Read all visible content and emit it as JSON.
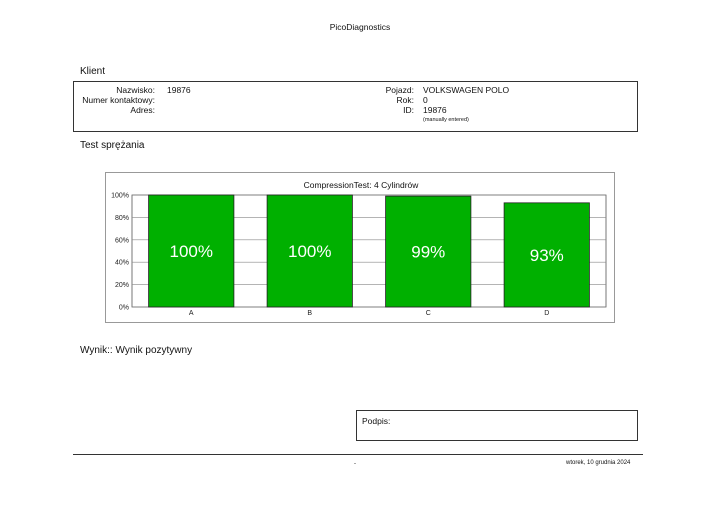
{
  "header": {
    "title": "PicoDiagnostics"
  },
  "client_section": {
    "heading": "Klient",
    "left": [
      {
        "label": "Nazwisko:",
        "value": "19876"
      },
      {
        "label": "Numer kontaktowy:",
        "value": ""
      },
      {
        "label": "Adres:",
        "value": ""
      }
    ],
    "right": [
      {
        "label": "Pojazd:",
        "value": "VOLKSWAGEN POLO"
      },
      {
        "label": "Rok:",
        "value": "0"
      },
      {
        "label": "ID:",
        "value": "19876"
      }
    ],
    "id_note": "(manually entered)"
  },
  "test_section": {
    "heading": "Test sprężania"
  },
  "chart_data": {
    "type": "bar",
    "title": "CompressionTest: 4 Cylindrów",
    "categories": [
      "A",
      "B",
      "C",
      "D"
    ],
    "values": [
      100,
      100,
      99,
      93
    ],
    "value_labels": [
      "100%",
      "100%",
      "99%",
      "93%"
    ],
    "ylim": [
      0,
      100
    ],
    "yticks": [
      "0%",
      "20%",
      "40%",
      "60%",
      "80%",
      "100%"
    ],
    "xlabel": "",
    "ylabel": "",
    "grid": true,
    "bar_color": "#00b000",
    "bar_edge_color": "#222222"
  },
  "result": {
    "text": "Wynik:: Wynik pozytywny"
  },
  "signature": {
    "label": "Podpis:"
  },
  "footer": {
    "center": "-",
    "date": "wtorek, 10 grudnia 2024"
  }
}
